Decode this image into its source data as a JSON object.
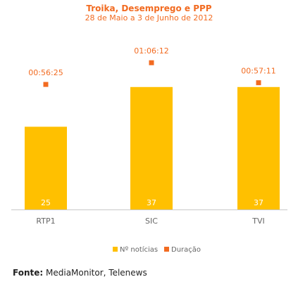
{
  "chart_data": {
    "type": "bar",
    "title": "Troika, Desemprego e PPP",
    "subtitle": "28 de Maio a 3 de Junho de 2012",
    "categories": [
      "RTP1",
      "SIC",
      "TVI"
    ],
    "ylim": [
      0,
      48
    ],
    "series": [
      {
        "name": "Nº notícias",
        "values": [
          25,
          37,
          37
        ],
        "color": "#ffc000"
      },
      {
        "name": "Duração",
        "values": [
          "00:56:25",
          "01:06:12",
          "00:57:11"
        ],
        "seconds": [
          3385,
          3972,
          3431
        ],
        "color": "#f26b21"
      }
    ],
    "duration_range_seconds": [
      0,
      4300
    ],
    "legend": {
      "position": "bottom-center",
      "items": [
        "Nº notícias",
        "Duração"
      ]
    },
    "grid": false
  },
  "source": {
    "label": "Fonte:",
    "text": "MediaMonitor, Telenews"
  }
}
